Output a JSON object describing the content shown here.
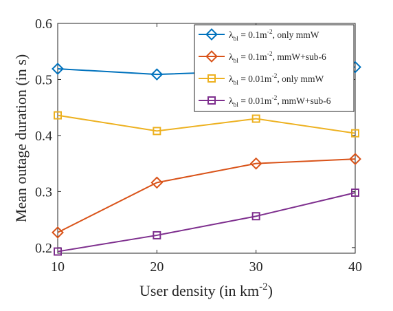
{
  "chart_data": {
    "type": "line",
    "xlabel": "User density (in km",
    "xlabel_sup": "-2",
    "xlabel_suffix": ")",
    "ylabel": "Mean outage duration (in s)",
    "x": [
      10,
      20,
      30,
      40
    ],
    "xlim": [
      10,
      40
    ],
    "ylim": [
      0.19,
      0.6
    ],
    "xticks": [
      "10",
      "20",
      "30",
      "40"
    ],
    "yticks": [
      "0.2",
      "0.3",
      "0.4",
      "0.5",
      "0.6"
    ],
    "grid": false,
    "legend_position": "top-right",
    "series": [
      {
        "symbol": "λ",
        "sub": "bl",
        "eq": " = 0.1m",
        "sup": "-2",
        "suffix": ", only mmW",
        "color": "#0072BD",
        "marker": "diamond",
        "values": [
          0.519,
          0.509,
          0.515,
          0.522
        ]
      },
      {
        "symbol": "λ",
        "sub": "bl",
        "eq": " = 0.1m",
        "sup": "-2",
        "suffix": ", mmW+sub-6",
        "color": "#D95319",
        "marker": "diamond",
        "values": [
          0.227,
          0.316,
          0.35,
          0.358
        ]
      },
      {
        "symbol": "λ",
        "sub": "bl",
        "eq": " = 0.01m",
        "sup": "-2",
        "suffix": ", only mmW",
        "color": "#EDB120",
        "marker": "square",
        "values": [
          0.436,
          0.408,
          0.43,
          0.404
        ]
      },
      {
        "symbol": "λ",
        "sub": "bl",
        "eq": " = 0.01m",
        "sup": "-2",
        "suffix": ", mmW+sub-6",
        "color": "#7E2F8E",
        "marker": "square",
        "values": [
          0.193,
          0.222,
          0.256,
          0.298
        ]
      }
    ]
  }
}
